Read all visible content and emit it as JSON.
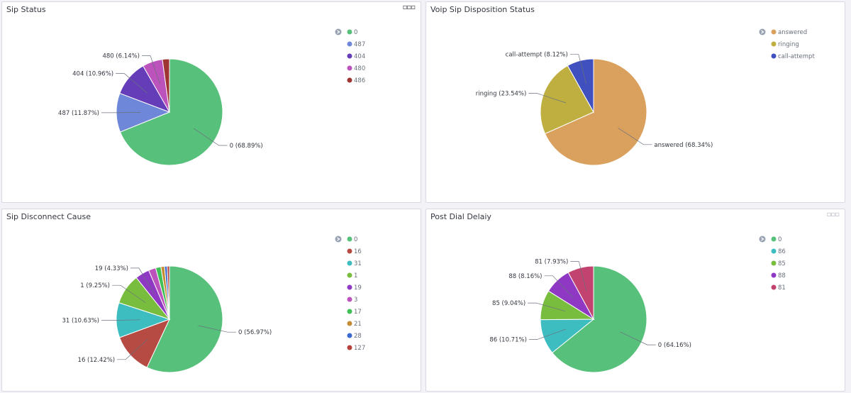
{
  "colors": {
    "green": "#57c17b",
    "periwinkle": "#6f87d8",
    "purple": "#663db8",
    "magenta": "#bc52bc",
    "darkred": "#9e3533",
    "orange": "#daa05d",
    "olive": "#bfaf40",
    "blue": "#4050bf",
    "red": "#b64b44",
    "teal": "#3ebdc0",
    "lime": "#79bd3e",
    "violet": "#8e38c4",
    "bright-green": "#3fbf56",
    "brown-orange": "#c48c36",
    "royal-blue": "#3b6acf",
    "brick": "#b7423d",
    "crimson": "#c2436f",
    "legend_icon": "#98a2b3"
  },
  "chart_data": [
    {
      "type": "pie",
      "title": "Sip Status",
      "legend_position": "top-right",
      "categories": [
        "0",
        "487",
        "404",
        "480",
        "486"
      ],
      "values": [
        68.89,
        11.87,
        10.96,
        6.14,
        2.14
      ],
      "labels": [
        "0 (68.89%)",
        "487 (11.87%)",
        "404 (10.96%)",
        "480 (6.14%)",
        ""
      ],
      "colors": [
        "green",
        "periwinkle",
        "purple",
        "magenta",
        "darkred"
      ]
    },
    {
      "type": "pie",
      "title": "Voip Sip Disposition Status",
      "legend_position": "top-right",
      "categories": [
        "answered",
        "ringing",
        "call-attempt"
      ],
      "values": [
        68.34,
        23.54,
        8.12
      ],
      "labels": [
        "answered (68.34%)",
        "ringing (23.54%)",
        "call-attempt (8.12%)"
      ],
      "colors": [
        "orange",
        "olive",
        "blue"
      ]
    },
    {
      "type": "pie",
      "title": "Sip Disconnect Cause",
      "legend_position": "top-right",
      "categories": [
        "0",
        "16",
        "31",
        "1",
        "19",
        "3",
        "17",
        "21",
        "28",
        "127"
      ],
      "values": [
        56.97,
        12.42,
        10.63,
        9.25,
        4.33,
        2.2,
        1.6,
        1.1,
        0.8,
        0.7
      ],
      "labels": [
        "0 (56.97%)",
        "16 (12.42%)",
        "31 (10.63%)",
        "1 (9.25%)",
        "19 (4.33%)",
        "",
        "",
        "",
        "",
        ""
      ],
      "colors": [
        "green",
        "red",
        "teal",
        "lime",
        "violet",
        "magenta",
        "bright-green",
        "brown-orange",
        "royal-blue",
        "brick"
      ]
    },
    {
      "type": "pie",
      "title": "Post Dial Delaiy",
      "legend_position": "top-right",
      "categories": [
        "0",
        "86",
        "85",
        "88",
        "81"
      ],
      "values": [
        64.16,
        10.71,
        9.04,
        8.16,
        7.93
      ],
      "labels": [
        "0 (64.16%)",
        "86 (10.71%)",
        "85 (9.04%)",
        "88 (8.16%)",
        "81 (7.93%)"
      ],
      "colors": [
        "green",
        "teal",
        "lime",
        "violet",
        "crimson"
      ]
    }
  ]
}
